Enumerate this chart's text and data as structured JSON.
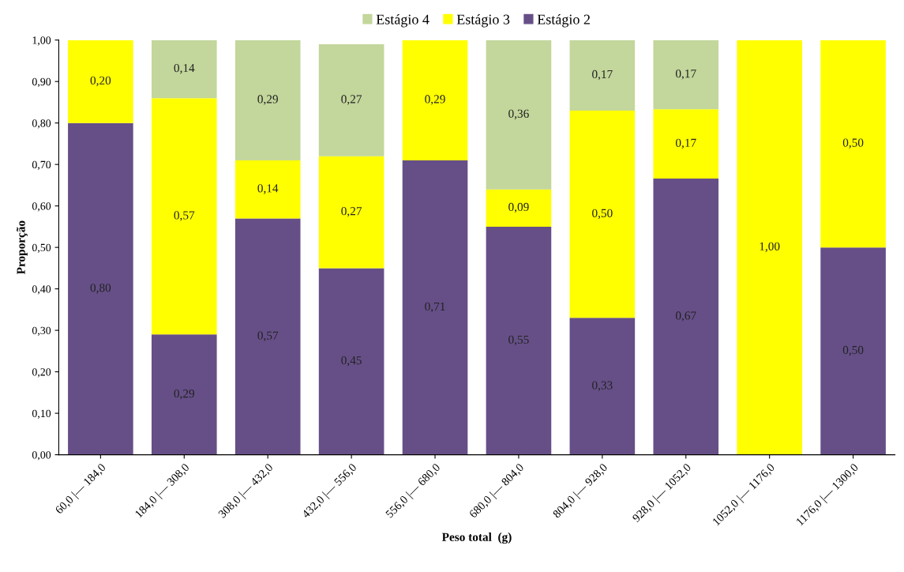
{
  "chart_data": {
    "type": "bar",
    "stacked": true,
    "xlabel": "Peso total  (g)",
    "ylabel": "Proporção",
    "categories": [
      "60,0 |— 184,0",
      "184,0 |— 308,0",
      "308,0 |— 432,0",
      "432,0 |— 556,0",
      "556,0 |— 680,0",
      "680,0 |— 804,0",
      "804,0 |— 928,0",
      "928,0 |— 1052,0",
      "1052,0 |— 1176,0",
      "1176,0 |— 1300,0"
    ],
    "series": [
      {
        "name": "Estágio 2",
        "color": "#664f87",
        "values": [
          0.8,
          0.29,
          0.57,
          0.45,
          0.71,
          0.55,
          0.33,
          0.666,
          null,
          0.5
        ],
        "value_labels": [
          "0,80",
          "0,29",
          "0,57",
          "0,45",
          "0,71",
          "0,55",
          "0,33",
          "0,67",
          null,
          "0,50"
        ]
      },
      {
        "name": "Estágio 3",
        "color": "#ffff00",
        "values": [
          0.2,
          0.57,
          0.14,
          0.27,
          0.29,
          0.09,
          0.5,
          0.167,
          1.0,
          0.5
        ],
        "value_labels": [
          "0,20",
          "0,57",
          "0,14",
          "0,27",
          "0,29",
          "0,09",
          "0,50",
          "0,17",
          "1,00",
          "0,50"
        ]
      },
      {
        "name": "Estágio 4",
        "color": "#c3d69b",
        "values": [
          null,
          0.14,
          0.29,
          0.27,
          null,
          0.36,
          0.17,
          0.167,
          null,
          null
        ],
        "value_labels": [
          null,
          "0,14",
          "0,29",
          "0,27",
          null,
          "0,36",
          "0,17",
          "0,17",
          null,
          null
        ]
      }
    ],
    "ylim": [
      0,
      1
    ],
    "yticks": [
      {
        "value": 0,
        "label": "0,00"
      },
      {
        "value": 0.1,
        "label": "0,10"
      },
      {
        "value": 0.2,
        "label": "0,20"
      },
      {
        "value": 0.3,
        "label": "0,30"
      },
      {
        "value": 0.4,
        "label": "0,40"
      },
      {
        "value": 0.5,
        "label": "0,50"
      },
      {
        "value": 0.6,
        "label": "0,60"
      },
      {
        "value": 0.7,
        "label": "0,70"
      },
      {
        "value": 0.8,
        "label": "0,80"
      },
      {
        "value": 0.9,
        "label": "0,90"
      },
      {
        "value": 1,
        "label": "1,00"
      }
    ],
    "grid": false,
    "legend": "top"
  }
}
